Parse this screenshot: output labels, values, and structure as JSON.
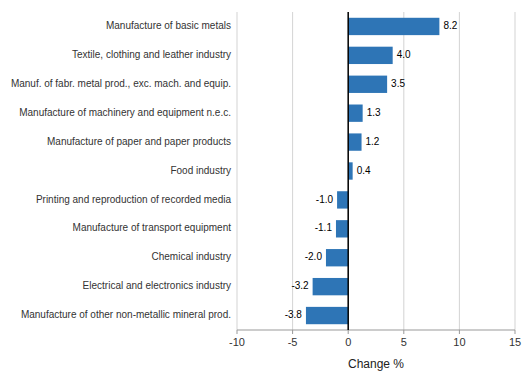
{
  "chart_data": {
    "type": "bar",
    "orientation": "horizontal",
    "categories": [
      "Manufacture of other non-metallic mineral prod.",
      "Electrical and electronics industry",
      "Chemical industry",
      "Manufacture of transport equipment",
      "Printing and reproduction of recorded media",
      "Food industry",
      "Manufacture of paper and paper products",
      "Manufacture of machinery and equipment n.e.c.",
      "Manuf. of fabr. metal prod., exc. mach. and equip.",
      "Textile, clothing and leather industry",
      "Manufacture of basic metals"
    ],
    "values": [
      -3.8,
      -3.2,
      -2.0,
      -1.1,
      -1.0,
      0.4,
      1.2,
      1.3,
      3.5,
      4.0,
      8.2
    ],
    "value_labels": [
      "-3.8",
      "-3.2",
      "-2.0",
      "-1.1",
      "-1.0",
      "0.4",
      "1.2",
      "1.3",
      "3.5",
      "4.0",
      "8.2"
    ],
    "color": "#2e75b6",
    "xlabel": "Change %",
    "xlim": [
      -10,
      15
    ],
    "xticks": [
      -10,
      -5,
      0,
      5,
      10,
      15
    ],
    "grid": true,
    "data_labels": true
  }
}
